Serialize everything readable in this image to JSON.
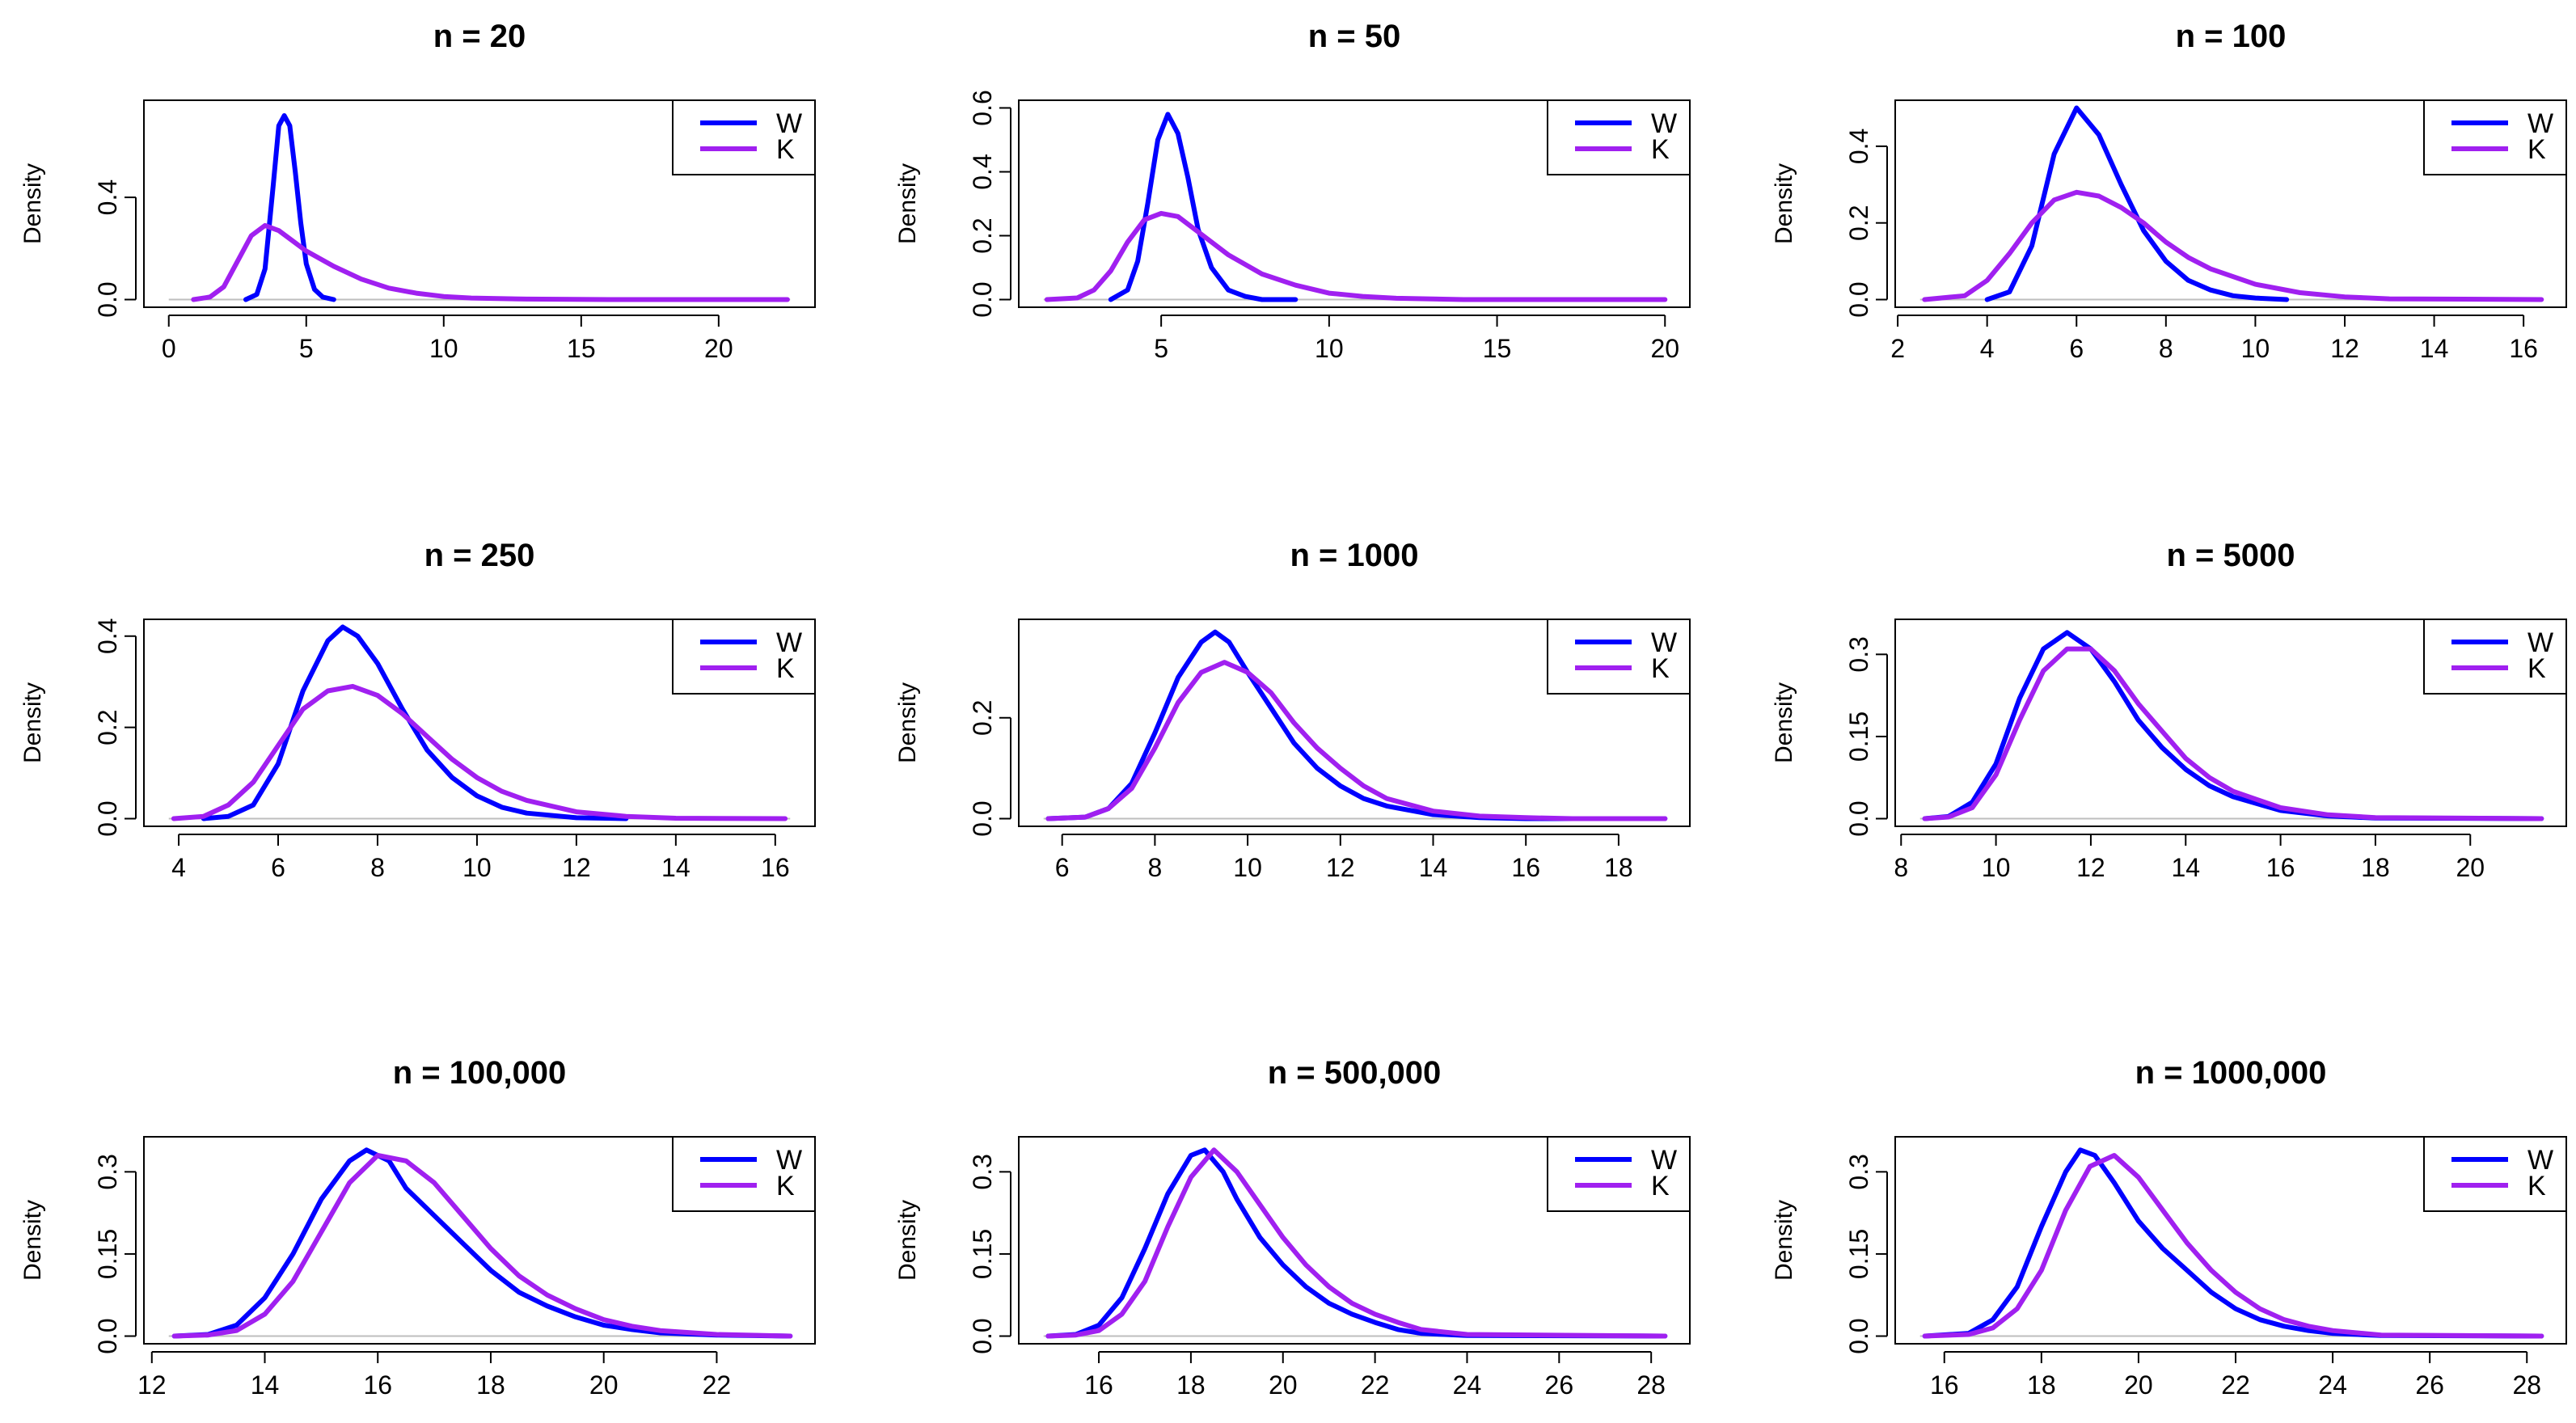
{
  "figure": {
    "rows": 3,
    "cols": 3
  },
  "colors": {
    "W": "#0000ff",
    "K": "#a020f0",
    "baseline": "#bebebe"
  },
  "chart_data": [
    {
      "type": "line",
      "title": "n = 20",
      "xlabel": "",
      "ylabel": "Density",
      "xlim": [
        0,
        22.6
      ],
      "ylim": [
        0,
        0.75
      ],
      "xticks": [
        0,
        5,
        10,
        15,
        20
      ],
      "yticks": [
        0,
        0.4
      ],
      "legend": {
        "position": "top-right",
        "entries": [
          "W",
          "K"
        ]
      },
      "series": [
        {
          "name": "W",
          "x": [
            2.8,
            3.2,
            3.5,
            3.8,
            4.0,
            4.2,
            4.4,
            4.6,
            4.8,
            5.0,
            5.3,
            5.6,
            6.0
          ],
          "y": [
            0.0,
            0.02,
            0.12,
            0.45,
            0.68,
            0.72,
            0.68,
            0.5,
            0.3,
            0.14,
            0.04,
            0.01,
            0.0
          ]
        },
        {
          "name": "K",
          "x": [
            0.9,
            1.5,
            2.0,
            2.5,
            3.0,
            3.5,
            4.0,
            4.5,
            5.0,
            6.0,
            7.0,
            8.0,
            9.0,
            10.0,
            11.0,
            13.0,
            16.0,
            22.5
          ],
          "y": [
            0.0,
            0.01,
            0.05,
            0.15,
            0.25,
            0.29,
            0.27,
            0.23,
            0.19,
            0.13,
            0.08,
            0.045,
            0.025,
            0.012,
            0.006,
            0.002,
            0.0,
            0.0
          ]
        }
      ]
    },
    {
      "type": "line",
      "title": "n = 50",
      "xlabel": "",
      "ylabel": "Density",
      "xlim": [
        1.5,
        20
      ],
      "ylim": [
        0,
        0.6
      ],
      "xticks": [
        5,
        10,
        15,
        20
      ],
      "yticks": [
        0,
        0.2,
        0.4,
        0.6
      ],
      "legend": {
        "position": "top-right",
        "entries": [
          "W",
          "K"
        ]
      },
      "series": [
        {
          "name": "W",
          "x": [
            3.5,
            4.0,
            4.3,
            4.6,
            4.9,
            5.2,
            5.5,
            5.8,
            6.1,
            6.5,
            7.0,
            7.5,
            8.0,
            9.0
          ],
          "y": [
            0.0,
            0.03,
            0.12,
            0.3,
            0.5,
            0.58,
            0.52,
            0.38,
            0.22,
            0.1,
            0.03,
            0.01,
            0.0,
            0.0
          ]
        },
        {
          "name": "K",
          "x": [
            1.6,
            2.5,
            3.0,
            3.5,
            4.0,
            4.5,
            5.0,
            5.5,
            6.0,
            6.5,
            7.0,
            8.0,
            9.0,
            10.0,
            11.0,
            12.0,
            14.0,
            20.0
          ],
          "y": [
            0.0,
            0.005,
            0.03,
            0.09,
            0.18,
            0.25,
            0.27,
            0.26,
            0.22,
            0.18,
            0.14,
            0.08,
            0.045,
            0.02,
            0.01,
            0.004,
            0.0,
            0.0
          ]
        }
      ]
    },
    {
      "type": "line",
      "title": "n = 100",
      "xlabel": "",
      "ylabel": "Density",
      "xlim": [
        2.5,
        16.4
      ],
      "ylim": [
        0,
        0.5
      ],
      "xticks": [
        2,
        4,
        6,
        8,
        10,
        12,
        14,
        16
      ],
      "yticks": [
        0,
        0.2,
        0.4
      ],
      "legend": {
        "position": "top-right",
        "entries": [
          "W",
          "K"
        ]
      },
      "series": [
        {
          "name": "W",
          "x": [
            4.0,
            4.5,
            5.0,
            5.5,
            6.0,
            6.5,
            7.0,
            7.5,
            8.0,
            8.5,
            9.0,
            9.5,
            10.0,
            10.7
          ],
          "y": [
            0.0,
            0.02,
            0.14,
            0.38,
            0.5,
            0.43,
            0.3,
            0.18,
            0.1,
            0.05,
            0.025,
            0.01,
            0.004,
            0.0
          ]
        },
        {
          "name": "K",
          "x": [
            2.6,
            3.5,
            4.0,
            4.5,
            5.0,
            5.5,
            6.0,
            6.5,
            7.0,
            7.5,
            8.0,
            8.5,
            9.0,
            10.0,
            11.0,
            12.0,
            13.0,
            16.4
          ],
          "y": [
            0.0,
            0.01,
            0.05,
            0.12,
            0.2,
            0.26,
            0.28,
            0.27,
            0.24,
            0.2,
            0.15,
            0.11,
            0.08,
            0.04,
            0.018,
            0.007,
            0.002,
            0.0
          ]
        }
      ]
    },
    {
      "type": "line",
      "title": "n = 250",
      "xlabel": "",
      "ylabel": "Density",
      "xlim": [
        3.8,
        16.3
      ],
      "ylim": [
        0,
        0.42
      ],
      "xticks": [
        4,
        6,
        8,
        10,
        12,
        14,
        16
      ],
      "yticks": [
        0,
        0.2,
        0.4
      ],
      "legend": {
        "position": "top-right",
        "entries": [
          "W",
          "K"
        ]
      },
      "series": [
        {
          "name": "W",
          "x": [
            4.5,
            5.0,
            5.5,
            6.0,
            6.5,
            7.0,
            7.3,
            7.6,
            8.0,
            8.5,
            9.0,
            9.5,
            10.0,
            10.5,
            11.0,
            12.0,
            13.0
          ],
          "y": [
            0.0,
            0.005,
            0.03,
            0.12,
            0.28,
            0.39,
            0.42,
            0.4,
            0.34,
            0.24,
            0.15,
            0.09,
            0.05,
            0.025,
            0.012,
            0.002,
            0.0
          ]
        },
        {
          "name": "K",
          "x": [
            3.9,
            4.5,
            5.0,
            5.5,
            6.0,
            6.5,
            7.0,
            7.5,
            8.0,
            8.5,
            9.0,
            9.5,
            10.0,
            10.5,
            11.0,
            12.0,
            13.0,
            14.0,
            16.2
          ],
          "y": [
            0.0,
            0.005,
            0.03,
            0.08,
            0.16,
            0.24,
            0.28,
            0.29,
            0.27,
            0.23,
            0.18,
            0.13,
            0.09,
            0.06,
            0.04,
            0.015,
            0.005,
            0.001,
            0.0
          ]
        }
      ]
    },
    {
      "type": "line",
      "title": "n = 1000",
      "xlabel": "",
      "ylabel": "Density",
      "xlim": [
        5.6,
        19.0
      ],
      "ylim": [
        0,
        0.38
      ],
      "xticks": [
        6,
        8,
        10,
        12,
        14,
        16,
        18
      ],
      "yticks": [
        0,
        0.2
      ],
      "legend": {
        "position": "top-right",
        "entries": [
          "W",
          "K"
        ]
      },
      "series": [
        {
          "name": "W",
          "x": [
            5.7,
            6.5,
            7.0,
            7.5,
            8.0,
            8.5,
            9.0,
            9.3,
            9.6,
            10.0,
            10.5,
            11.0,
            11.5,
            12.0,
            12.5,
            13.0,
            14.0,
            15.0,
            16.0,
            19.0
          ],
          "y": [
            0.0,
            0.003,
            0.02,
            0.07,
            0.17,
            0.28,
            0.35,
            0.37,
            0.35,
            0.29,
            0.22,
            0.15,
            0.1,
            0.065,
            0.04,
            0.025,
            0.008,
            0.002,
            0.0,
            0.0
          ]
        },
        {
          "name": "K",
          "x": [
            5.7,
            6.5,
            7.0,
            7.5,
            8.0,
            8.5,
            9.0,
            9.5,
            10.0,
            10.5,
            11.0,
            11.5,
            12.0,
            12.5,
            13.0,
            14.0,
            15.0,
            16.0,
            17.0,
            19.0
          ],
          "y": [
            0.0,
            0.003,
            0.02,
            0.06,
            0.14,
            0.23,
            0.29,
            0.31,
            0.29,
            0.25,
            0.19,
            0.14,
            0.1,
            0.065,
            0.04,
            0.015,
            0.005,
            0.002,
            0.0,
            0.0
          ]
        }
      ]
    },
    {
      "type": "line",
      "title": "n = 5000",
      "xlabel": "",
      "ylabel": "Density",
      "xlim": [
        8.4,
        21.5
      ],
      "ylim": [
        0,
        0.35
      ],
      "xticks": [
        8,
        10,
        12,
        14,
        16,
        18,
        20
      ],
      "yticks": [
        0,
        0.15,
        0.3
      ],
      "legend": {
        "position": "top-right",
        "entries": [
          "W",
          "K"
        ]
      },
      "series": [
        {
          "name": "W",
          "x": [
            8.5,
            9.0,
            9.5,
            10.0,
            10.5,
            11.0,
            11.5,
            12.0,
            12.5,
            13.0,
            13.5,
            14.0,
            14.5,
            15.0,
            16.0,
            17.0,
            18.0,
            21.5
          ],
          "y": [
            0.0,
            0.004,
            0.03,
            0.1,
            0.22,
            0.31,
            0.34,
            0.31,
            0.25,
            0.18,
            0.13,
            0.09,
            0.06,
            0.04,
            0.015,
            0.005,
            0.001,
            0.0
          ]
        },
        {
          "name": "K",
          "x": [
            8.5,
            9.0,
            9.5,
            10.0,
            10.5,
            11.0,
            11.5,
            12.0,
            12.5,
            13.0,
            13.5,
            14.0,
            14.5,
            15.0,
            16.0,
            17.0,
            18.0,
            21.5
          ],
          "y": [
            0.0,
            0.003,
            0.02,
            0.08,
            0.18,
            0.27,
            0.31,
            0.31,
            0.27,
            0.21,
            0.16,
            0.11,
            0.075,
            0.05,
            0.02,
            0.007,
            0.002,
            0.0
          ]
        }
      ]
    },
    {
      "type": "line",
      "title": "n = 100,000",
      "xlabel": "",
      "ylabel": "Density",
      "xlim": [
        12.3,
        23.3
      ],
      "ylim": [
        0,
        0.35
      ],
      "xticks": [
        12,
        14,
        16,
        18,
        20,
        22
      ],
      "yticks": [
        0,
        0.15,
        0.3
      ],
      "legend": {
        "position": "top-right",
        "entries": [
          "W",
          "K"
        ]
      },
      "series": [
        {
          "name": "W",
          "x": [
            12.4,
            13.0,
            13.5,
            14.0,
            14.5,
            15.0,
            15.5,
            15.8,
            16.2,
            16.5,
            17.0,
            17.5,
            18.0,
            18.5,
            19.0,
            19.5,
            20.0,
            20.5,
            21.0,
            22.0,
            23.3
          ],
          "y": [
            0.0,
            0.003,
            0.02,
            0.07,
            0.15,
            0.25,
            0.32,
            0.34,
            0.32,
            0.27,
            0.22,
            0.17,
            0.12,
            0.08,
            0.055,
            0.035,
            0.02,
            0.012,
            0.006,
            0.002,
            0.0
          ]
        },
        {
          "name": "K",
          "x": [
            12.4,
            13.0,
            13.5,
            14.0,
            14.5,
            15.0,
            15.5,
            16.0,
            16.5,
            17.0,
            17.5,
            18.0,
            18.5,
            19.0,
            19.5,
            20.0,
            20.5,
            21.0,
            22.0,
            23.3
          ],
          "y": [
            0.0,
            0.002,
            0.01,
            0.04,
            0.1,
            0.19,
            0.28,
            0.33,
            0.32,
            0.28,
            0.22,
            0.16,
            0.11,
            0.075,
            0.05,
            0.03,
            0.018,
            0.01,
            0.003,
            0.0
          ]
        }
      ]
    },
    {
      "type": "line",
      "title": "n = 500,000",
      "xlabel": "",
      "ylabel": "Density",
      "xlim": [
        14.8,
        28.3
      ],
      "ylim": [
        0,
        0.35
      ],
      "xticks": [
        16,
        18,
        20,
        22,
        24,
        26,
        28
      ],
      "yticks": [
        0,
        0.15,
        0.3
      ],
      "legend": {
        "position": "top-right",
        "entries": [
          "W",
          "K"
        ]
      },
      "series": [
        {
          "name": "W",
          "x": [
            14.9,
            15.5,
            16.0,
            16.5,
            17.0,
            17.5,
            18.0,
            18.3,
            18.7,
            19.0,
            19.5,
            20.0,
            20.5,
            21.0,
            21.5,
            22.0,
            22.5,
            23.0,
            24.0,
            28.3
          ],
          "y": [
            0.0,
            0.003,
            0.02,
            0.07,
            0.16,
            0.26,
            0.33,
            0.34,
            0.3,
            0.25,
            0.18,
            0.13,
            0.09,
            0.06,
            0.04,
            0.025,
            0.012,
            0.005,
            0.001,
            0.0
          ]
        },
        {
          "name": "K",
          "x": [
            14.9,
            15.5,
            16.0,
            16.5,
            17.0,
            17.5,
            18.0,
            18.5,
            19.0,
            19.5,
            20.0,
            20.5,
            21.0,
            21.5,
            22.0,
            22.5,
            23.0,
            24.0,
            28.3
          ],
          "y": [
            0.0,
            0.002,
            0.01,
            0.04,
            0.1,
            0.2,
            0.29,
            0.34,
            0.3,
            0.24,
            0.18,
            0.13,
            0.09,
            0.06,
            0.04,
            0.025,
            0.012,
            0.003,
            0.0
          ]
        }
      ]
    },
    {
      "type": "line",
      "title": "n = 1000,000",
      "xlabel": "",
      "ylabel": "Density",
      "xlim": [
        15.5,
        28.3
      ],
      "ylim": [
        0,
        0.35
      ],
      "xticks": [
        16,
        18,
        20,
        22,
        24,
        26,
        28
      ],
      "yticks": [
        0,
        0.15,
        0.3
      ],
      "legend": {
        "position": "top-right",
        "entries": [
          "W",
          "K"
        ]
      },
      "series": [
        {
          "name": "W",
          "x": [
            15.6,
            16.5,
            17.0,
            17.5,
            18.0,
            18.5,
            18.8,
            19.1,
            19.5,
            20.0,
            20.5,
            21.0,
            21.5,
            22.0,
            22.5,
            23.0,
            23.5,
            24.0,
            25.0,
            28.3
          ],
          "y": [
            0.0,
            0.005,
            0.03,
            0.09,
            0.2,
            0.3,
            0.34,
            0.33,
            0.28,
            0.21,
            0.16,
            0.12,
            0.08,
            0.05,
            0.03,
            0.018,
            0.01,
            0.005,
            0.001,
            0.0
          ]
        },
        {
          "name": "K",
          "x": [
            15.6,
            16.5,
            17.0,
            17.5,
            18.0,
            18.5,
            19.0,
            19.5,
            20.0,
            20.5,
            21.0,
            21.5,
            22.0,
            22.5,
            23.0,
            23.5,
            24.0,
            25.0,
            28.3
          ],
          "y": [
            0.0,
            0.003,
            0.015,
            0.05,
            0.12,
            0.23,
            0.31,
            0.33,
            0.29,
            0.23,
            0.17,
            0.12,
            0.08,
            0.05,
            0.03,
            0.018,
            0.01,
            0.002,
            0.0
          ]
        }
      ]
    }
  ]
}
